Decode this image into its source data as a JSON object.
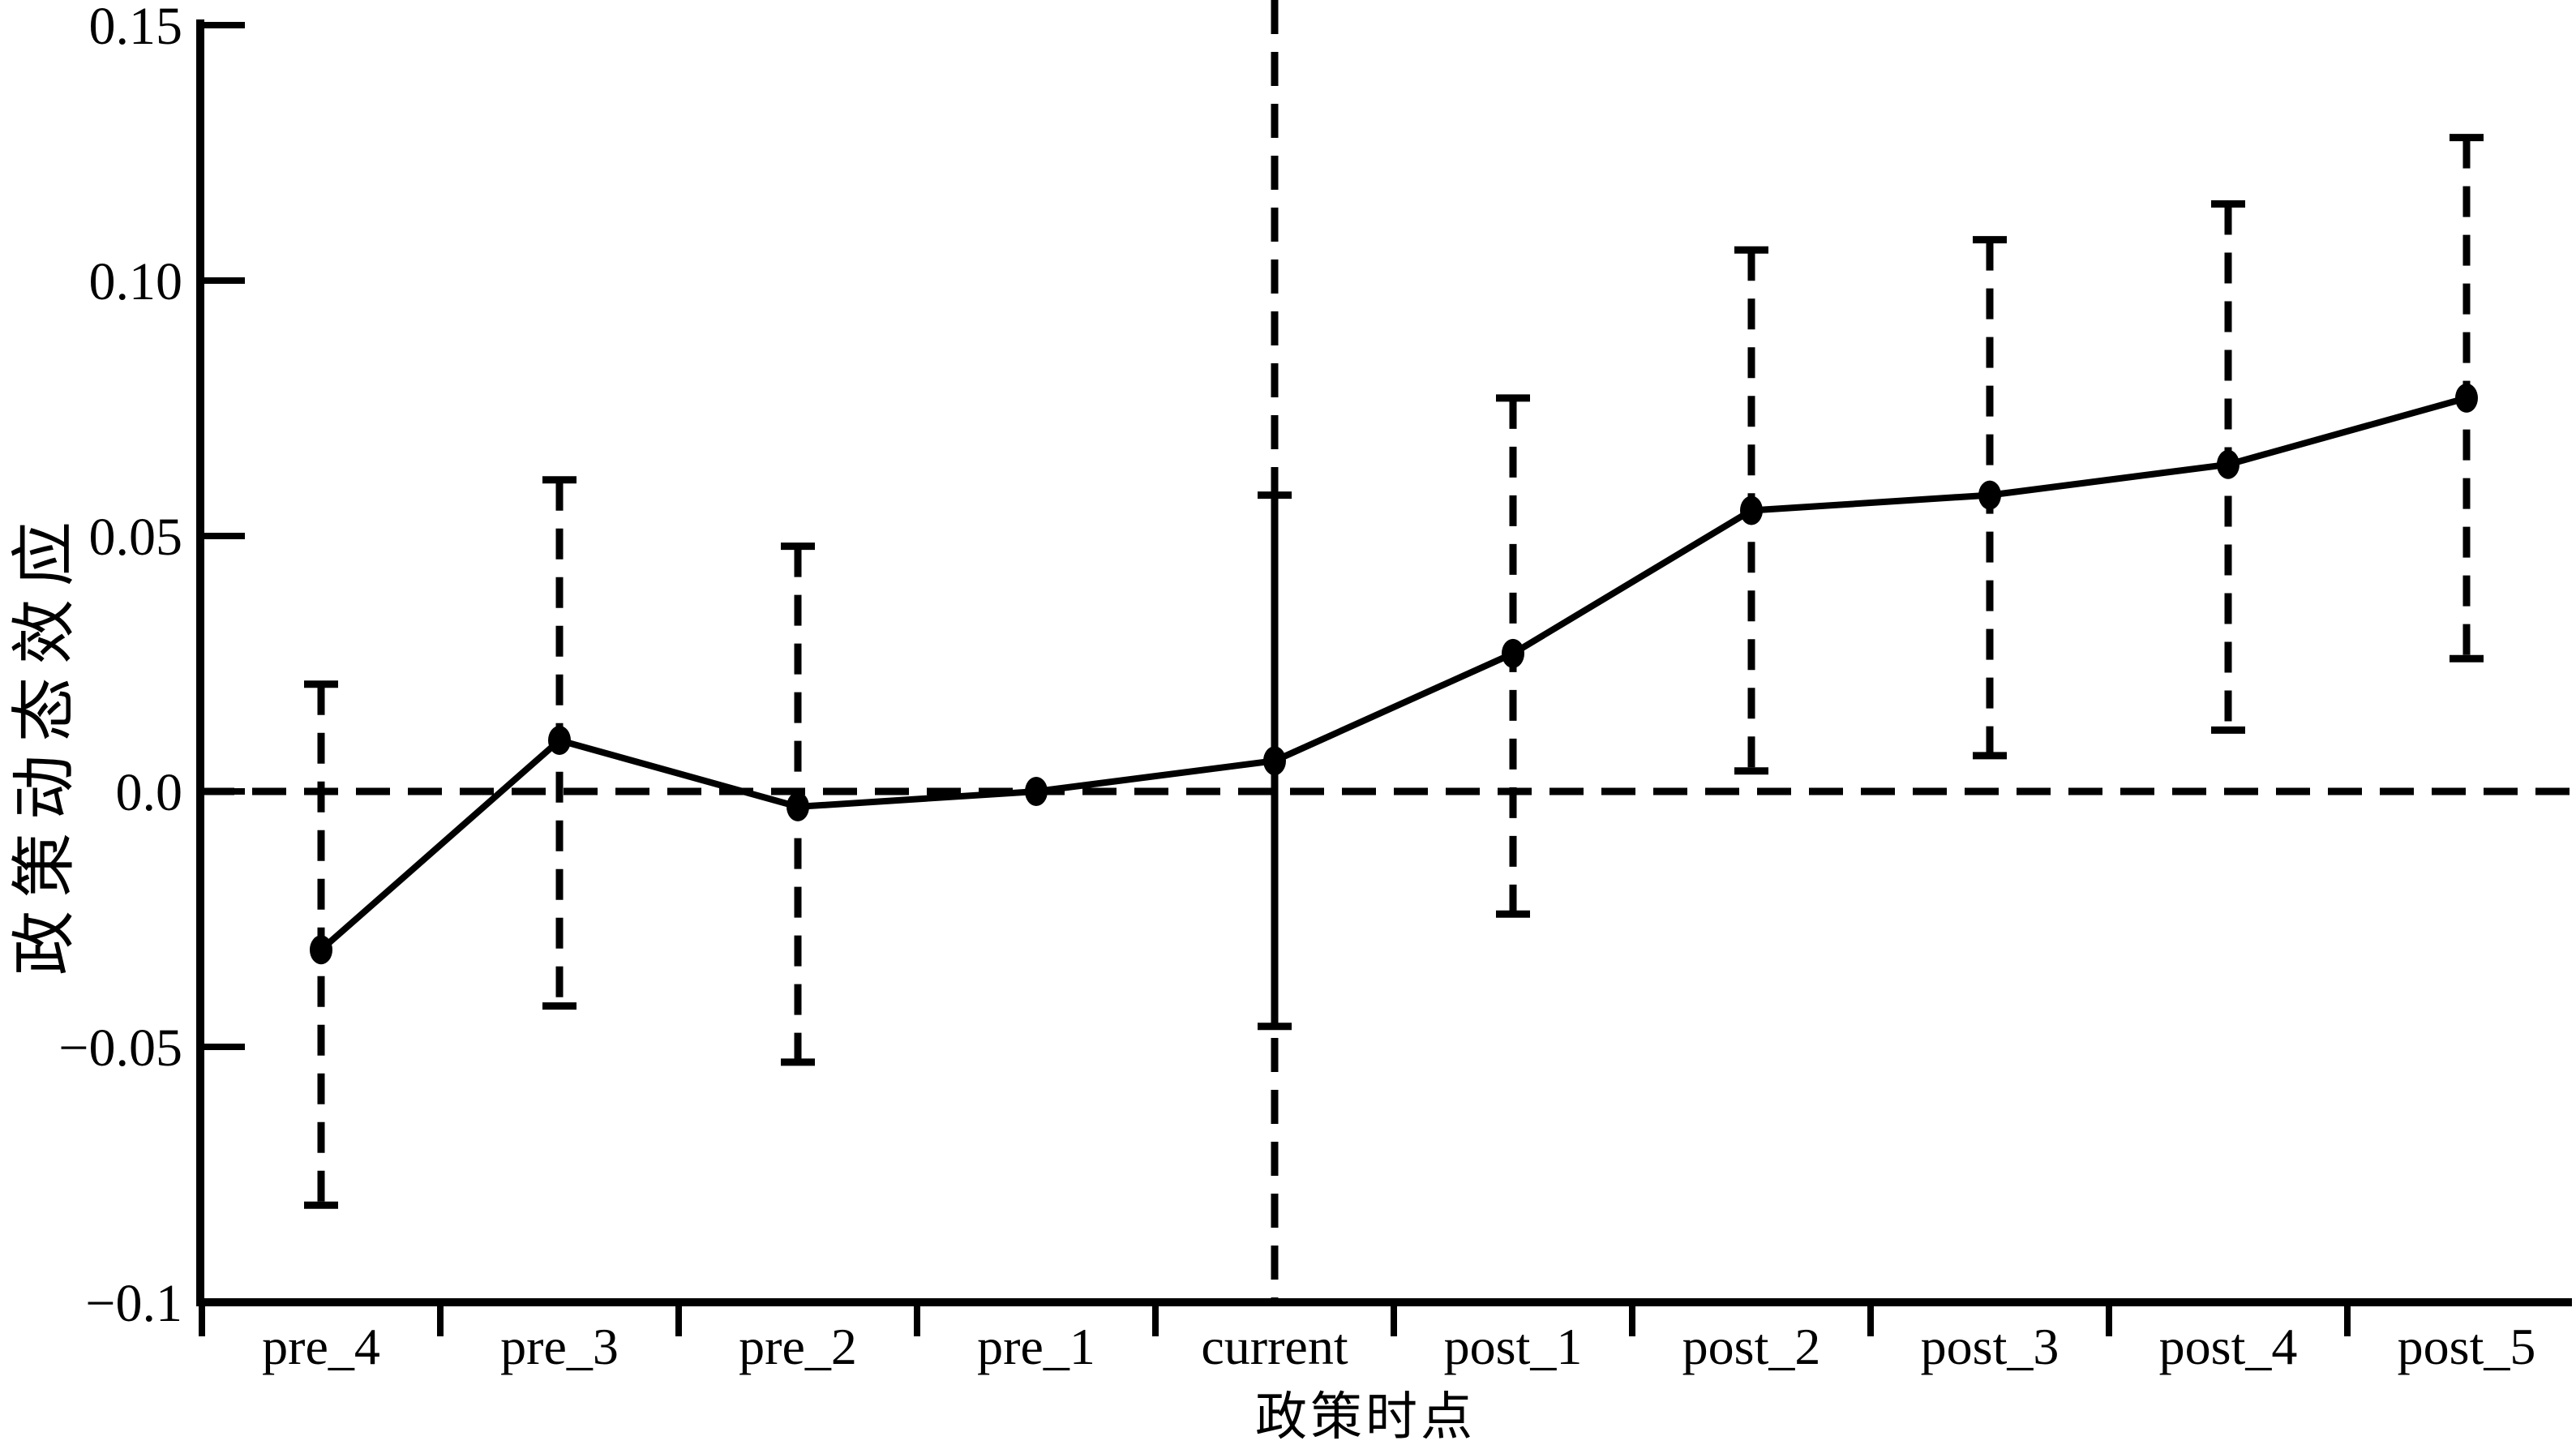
{
  "chart_data": {
    "type": "line",
    "title": "",
    "xlabel": "政策时点",
    "ylabel": "政策动态效应",
    "categories": [
      "pre_4",
      "pre_3",
      "pre_2",
      "pre_1",
      "current",
      "post_1",
      "post_2",
      "post_3",
      "post_4",
      "post_5"
    ],
    "series": [
      {
        "name": "政策动态效应",
        "values": [
          -0.031,
          0.01,
          -0.003,
          0.0,
          0.006,
          0.027,
          0.055,
          0.058,
          0.064,
          0.077
        ],
        "ci_low": [
          -0.081,
          -0.042,
          -0.053,
          0.0,
          -0.046,
          -0.024,
          0.004,
          0.007,
          0.012,
          0.026
        ],
        "ci_high": [
          0.021,
          0.061,
          0.048,
          0.0,
          0.058,
          0.077,
          0.106,
          0.108,
          0.115,
          0.128
        ]
      }
    ],
    "yticks": [
      {
        "v": 0.15,
        "label": "0.15"
      },
      {
        "v": 0.1,
        "label": "0.10"
      },
      {
        "v": 0.05,
        "label": "0.05"
      },
      {
        "v": 0.0,
        "label": "0.0"
      },
      {
        "v": -0.05,
        "label": "−0.05"
      },
      {
        "v": -0.1,
        "label": "−0.1"
      }
    ],
    "ylim": [
      -0.1,
      0.15
    ],
    "reference_line_y": 0.0,
    "vertical_line_category": "current",
    "baseline_category": "pre_1",
    "grid": false,
    "legend": false,
    "marker": "filled-circle",
    "error_bar_style": "dashed-with-caps",
    "colors": {
      "line": "#000000",
      "marker": "#000000",
      "axis": "#000000",
      "background": "#ffffff"
    }
  }
}
